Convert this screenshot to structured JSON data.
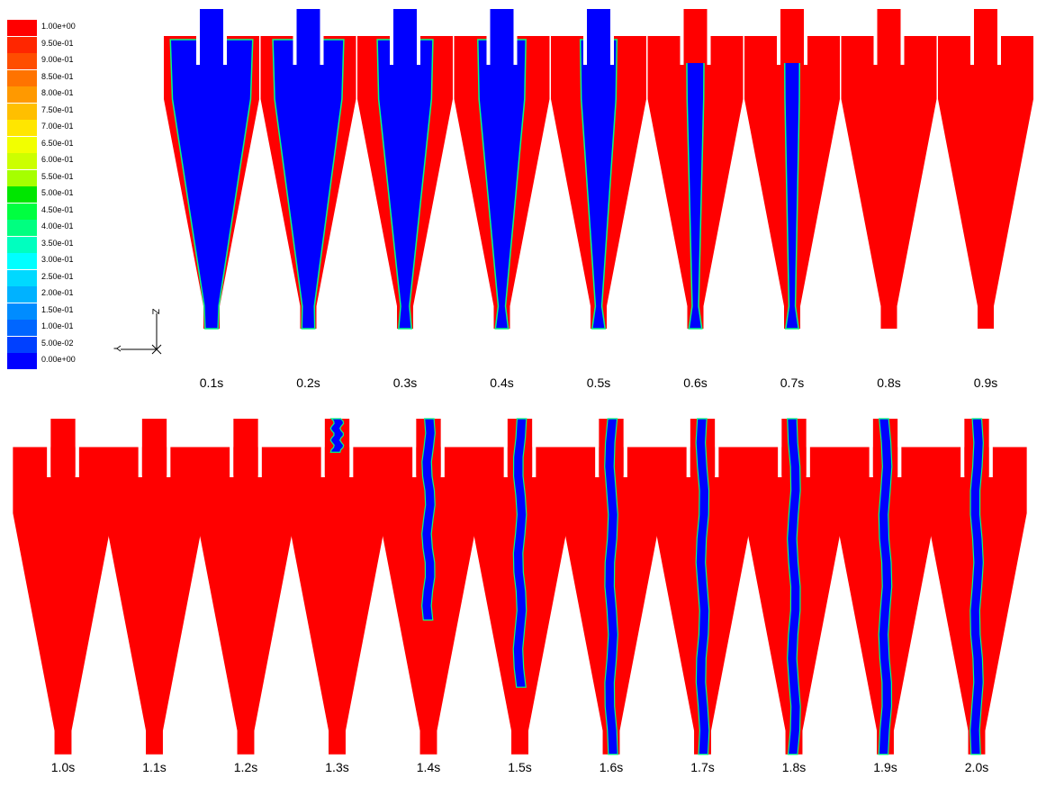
{
  "legend": {
    "values": [
      "1.00e+00",
      "9.50e-01",
      "9.00e-01",
      "8.50e-01",
      "8.00e-01",
      "7.50e-01",
      "7.00e-01",
      "6.50e-01",
      "6.00e-01",
      "5.50e-01",
      "5.00e-01",
      "4.50e-01",
      "4.00e-01",
      "3.50e-01",
      "3.00e-01",
      "2.50e-01",
      "2.00e-01",
      "1.50e-01",
      "1.00e-01",
      "5.00e-02",
      "0.00e+00"
    ],
    "colors": [
      "#ff0000",
      "#ff2600",
      "#ff4d00",
      "#ff7300",
      "#ff9900",
      "#ffbf00",
      "#ffe600",
      "#f2ff00",
      "#ccff00",
      "#a6ff00",
      "#00e600",
      "#00ff40",
      "#00ff80",
      "#00ffbf",
      "#00ffff",
      "#00d9ff",
      "#00b2ff",
      "#008cff",
      "#0066ff",
      "#0040ff",
      "#0000ff"
    ]
  },
  "axes": {
    "vertical": "Z",
    "horizontal": "Y"
  },
  "colors": {
    "phase_high": "#ff0000",
    "phase_low": "#0000ff",
    "interface": "#00ff80"
  },
  "frames": [
    {
      "label": "0.1s",
      "fill": 0.9,
      "core": 0
    },
    {
      "label": "0.2s",
      "fill": 0.75,
      "core": 0
    },
    {
      "label": "0.3s",
      "fill": 0.55,
      "core": 0
    },
    {
      "label": "0.4s",
      "fill": 0.45,
      "core": 0
    },
    {
      "label": "0.5s",
      "fill": 0.3,
      "core": 0
    },
    {
      "label": "0.6s",
      "fill": 0.05,
      "core": 0
    },
    {
      "label": "0.7s",
      "fill": 0.02,
      "core": 0
    },
    {
      "label": "0.8s",
      "fill": 0,
      "core": 0
    },
    {
      "label": "0.9s",
      "fill": 0,
      "core": 0
    },
    {
      "label": "1.0s",
      "fill": 0,
      "core": 0
    },
    {
      "label": "1.1s",
      "fill": 0,
      "core": 0
    },
    {
      "label": "1.2s",
      "fill": 0,
      "core": 0
    },
    {
      "label": "1.3s",
      "fill": 0,
      "core": 0.1
    },
    {
      "label": "1.4s",
      "fill": 0,
      "core": 0.6
    },
    {
      "label": "1.5s",
      "fill": 0,
      "core": 0.8
    },
    {
      "label": "1.6s",
      "fill": 0,
      "core": 1
    },
    {
      "label": "1.7s",
      "fill": 0,
      "core": 1
    },
    {
      "label": "1.8s",
      "fill": 0,
      "core": 1
    },
    {
      "label": "1.9s",
      "fill": 0,
      "core": 1
    },
    {
      "label": "2.0s",
      "fill": 0,
      "core": 1
    }
  ]
}
